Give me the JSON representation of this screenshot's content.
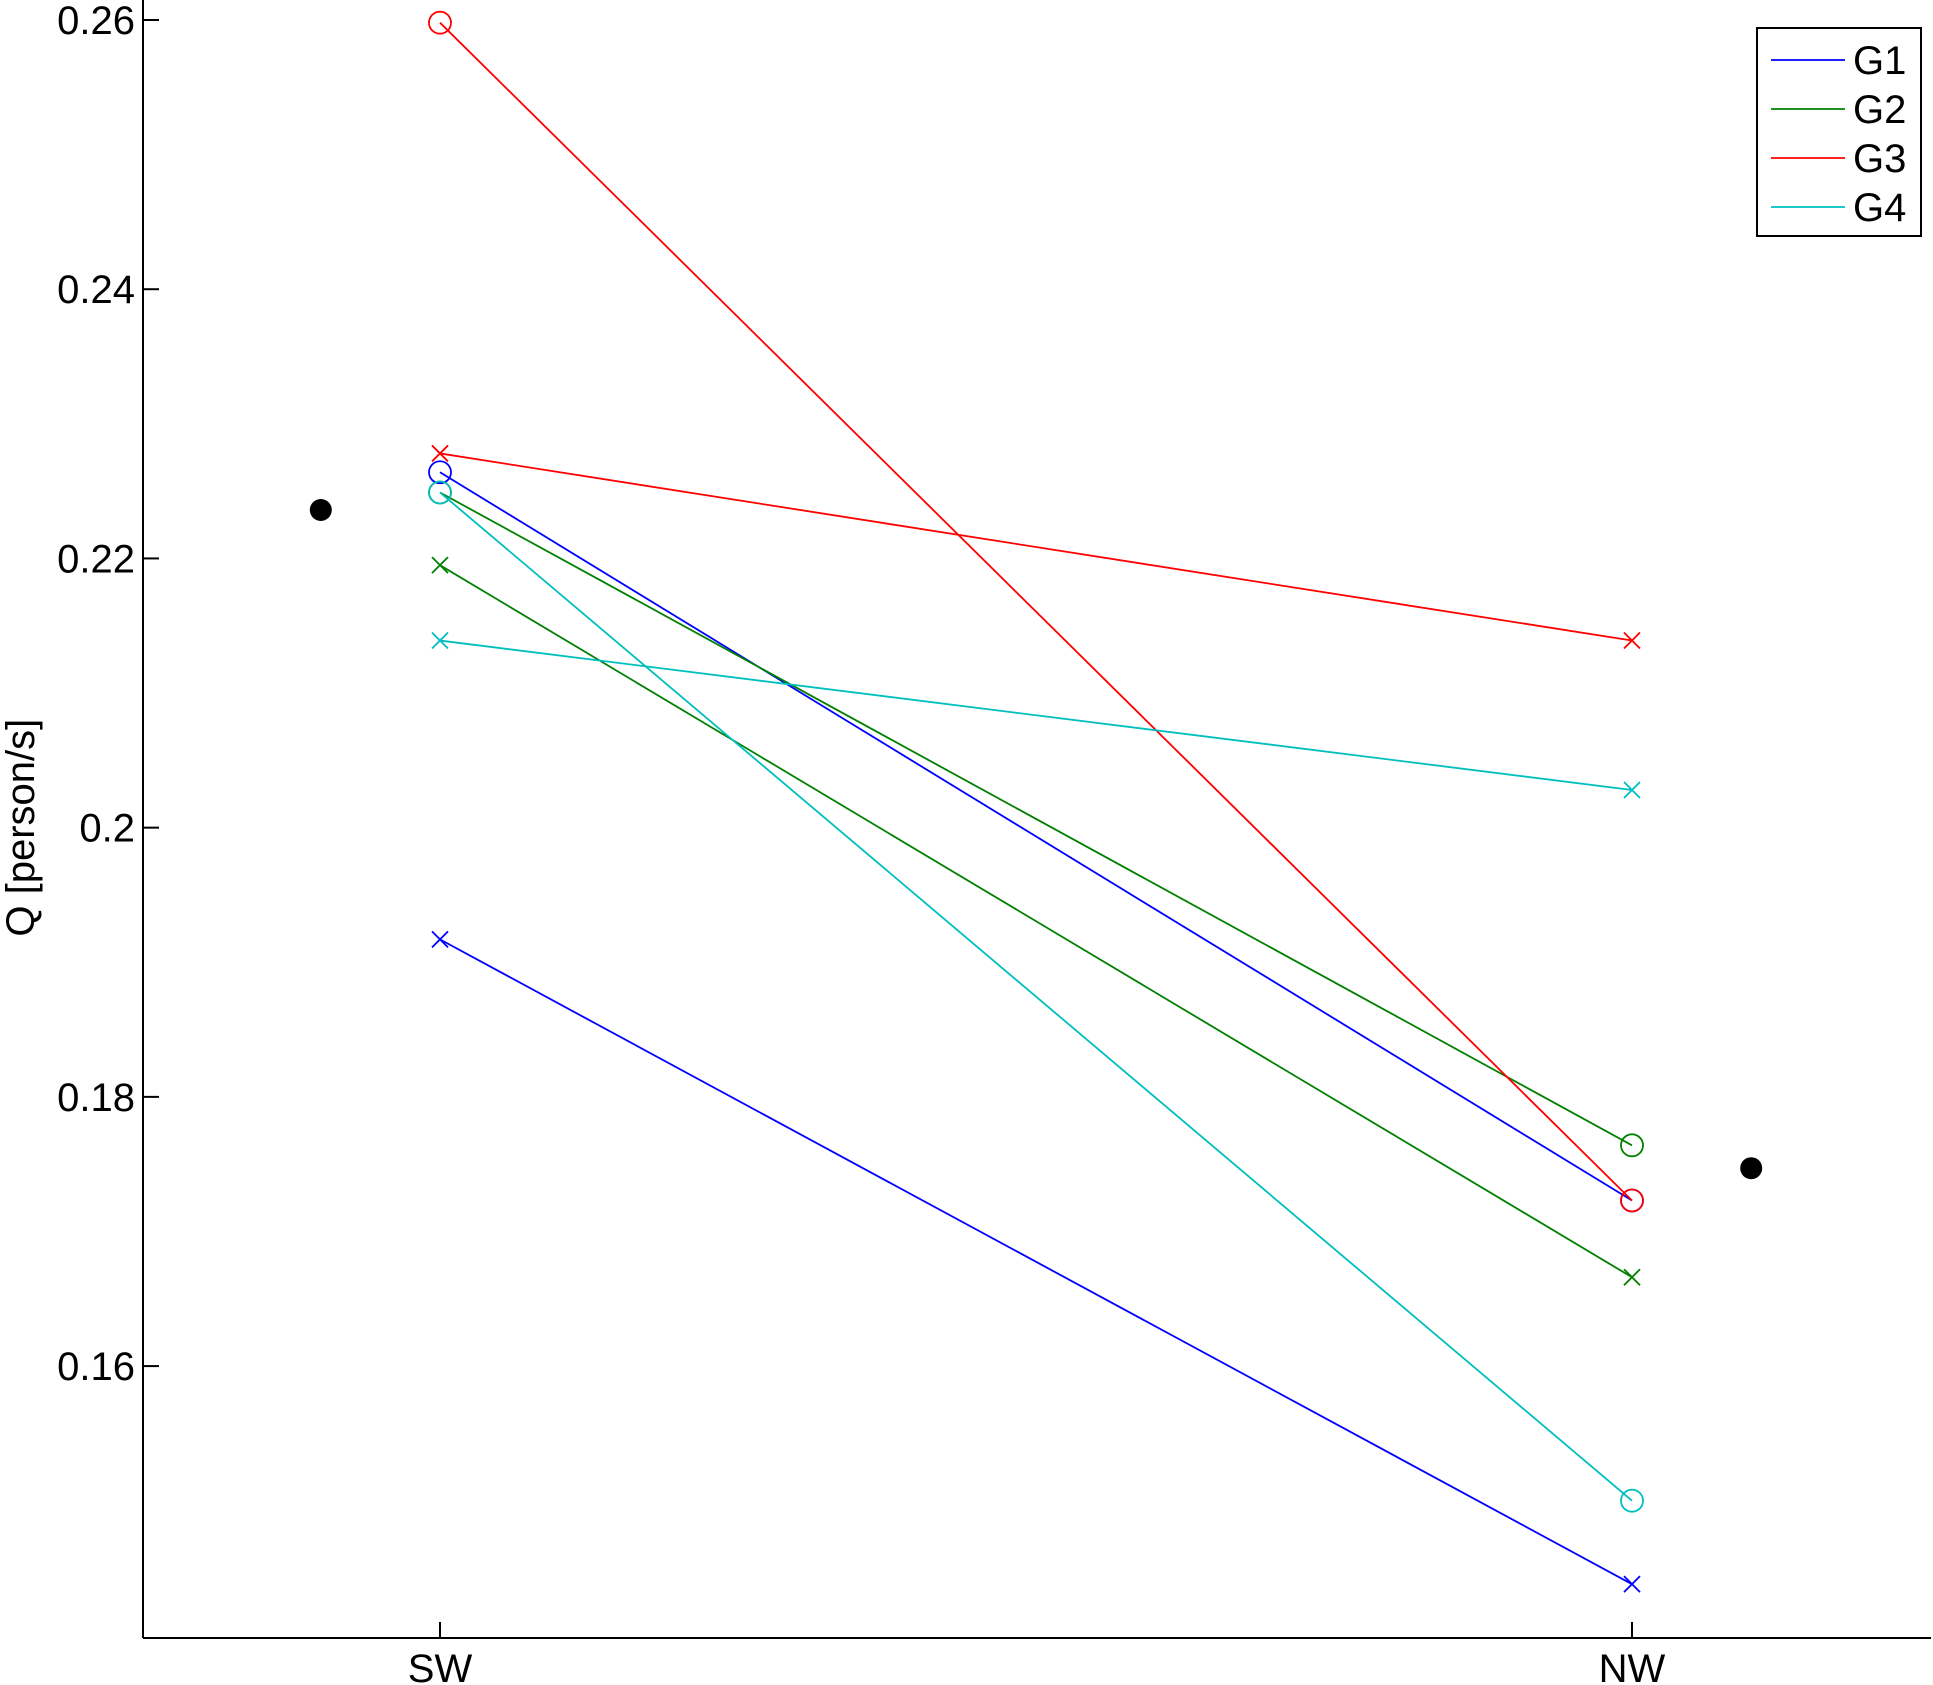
{
  "chart_data": {
    "type": "line",
    "title": "",
    "xlabel": "",
    "ylabel": "Q [person/s]",
    "categories": [
      "SW",
      "NW"
    ],
    "ylim": [
      0.1398,
      0.26
    ],
    "yticks": [
      0.16,
      0.18,
      0.2,
      0.22,
      0.24,
      0.26
    ],
    "ytick_labels": [
      "0.16",
      "0.18",
      "0.2",
      "0.22",
      "0.24",
      "0.26"
    ],
    "grid": false,
    "legend": {
      "position": "top-right",
      "entries": [
        {
          "name": "G1",
          "color": "#0000ff"
        },
        {
          "name": "G2",
          "color": "#008000"
        },
        {
          "name": "G3",
          "color": "#ff0000"
        },
        {
          "name": "G4",
          "color": "#00bfbf"
        }
      ]
    },
    "series": [
      {
        "group": "G1",
        "color": "#0000ff",
        "marker": "circle",
        "values": [
          0.2264,
          0.1723
        ]
      },
      {
        "group": "G1",
        "color": "#0000ff",
        "marker": "x",
        "values": [
          0.1917,
          0.1438
        ]
      },
      {
        "group": "G2",
        "color": "#008000",
        "marker": "circle",
        "values": [
          0.2249,
          0.1764
        ]
      },
      {
        "group": "G2",
        "color": "#008000",
        "marker": "x",
        "values": [
          0.2195,
          0.1666
        ]
      },
      {
        "group": "G3",
        "color": "#ff0000",
        "marker": "circle",
        "values": [
          0.2598,
          0.1723
        ]
      },
      {
        "group": "G3",
        "color": "#ff0000",
        "marker": "x",
        "values": [
          0.2278,
          0.2139
        ]
      },
      {
        "group": "G4",
        "color": "#00bfbf",
        "marker": "circle",
        "values": [
          0.2249,
          0.15
        ]
      },
      {
        "group": "G4",
        "color": "#00bfbf",
        "marker": "x",
        "values": [
          0.2139,
          0.2028
        ]
      }
    ],
    "mean_points": [
      {
        "position": 0.9,
        "value": 0.2236,
        "color": "#000000"
      },
      {
        "position": 2.1,
        "value": 0.1747,
        "color": "#000000"
      }
    ]
  }
}
